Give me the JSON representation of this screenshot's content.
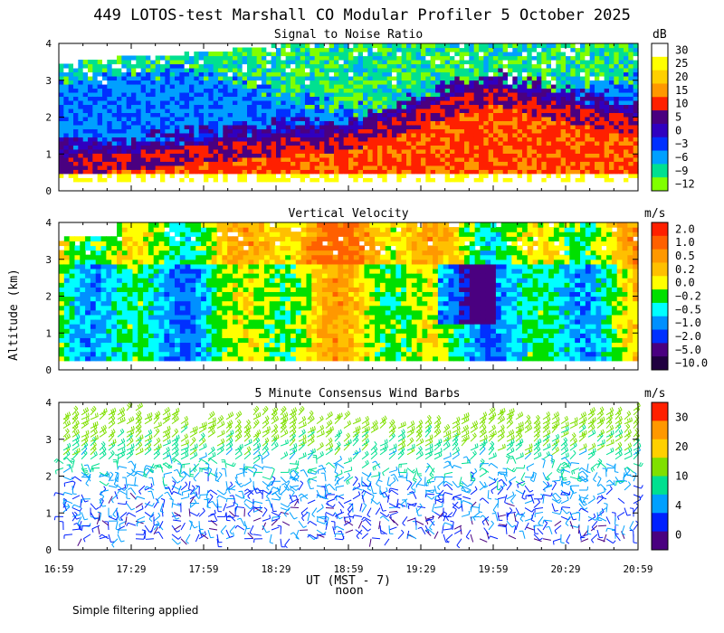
{
  "figure": {
    "title": "449 LOTOS-test Marshall CO Modular Profiler  5 October 2025",
    "ylabel": "Altitude (km)",
    "xlabel": "UT  (MST - 7)",
    "noon_label": "noon",
    "footnote": "Simple filtering applied",
    "x_ticks": [
      "16:59",
      "17:29",
      "17:59",
      "18:29",
      "18:59",
      "19:29",
      "19:59",
      "20:29",
      "20:59"
    ]
  },
  "chart_data": [
    {
      "type": "heatmap",
      "title": "Signal to Noise Ratio",
      "unit": "dB",
      "ylim": [
        0,
        4
      ],
      "y_ticks": [
        "0",
        "1",
        "2",
        "3",
        "4"
      ],
      "legend_labels": [
        "30",
        "25",
        "20",
        "15",
        "10",
        "5",
        "0",
        "−3",
        "−6",
        "−9",
        "−12"
      ],
      "colors": [
        "#ffffff",
        "#ffff00",
        "#ffd000",
        "#ff9800",
        "#ff2000",
        "#4a0080",
        "#3000c0",
        "#0030ff",
        "#00a0ff",
        "#00e090",
        "#80ff00"
      ],
      "legend_placement": "right",
      "features": {
        "top_km": [
          3.4,
          3.6,
          3.7,
          3.9,
          4.0,
          4.0,
          4.0,
          4.0,
          3.9
        ],
        "ground_echo_top_km": [
          0.9,
          1.0,
          1.2,
          1.4,
          1.5,
          2.2,
          2.8,
          2.3,
          2.0
        ],
        "blue_band_top_km": [
          2.8,
          3.2,
          3.2,
          2.6,
          2.2,
          2.0,
          2.2,
          2.6,
          3.0
        ]
      }
    },
    {
      "type": "heatmap",
      "title": "Vertical Velocity",
      "unit": "m/s",
      "ylim": [
        0,
        4
      ],
      "y_ticks": [
        "0",
        "1",
        "2",
        "3",
        "4"
      ],
      "legend_labels": [
        "2.0",
        "1.0",
        "0.5",
        "0.2",
        "0.0",
        "−0.2",
        "−0.5",
        "−1.0",
        "−2.0",
        "−5.0",
        "−10.0"
      ],
      "colors": [
        "#ff2000",
        "#ff6000",
        "#ff9800",
        "#ffc000",
        "#ffff00",
        "#00e000",
        "#00ffff",
        "#0090ff",
        "#0030ff",
        "#4a0080",
        "#200040"
      ],
      "legend_placement": "right"
    },
    {
      "type": "scatter",
      "title": "5 Minute Consensus Wind Barbs",
      "unit": "m/s",
      "ylim": [
        0,
        4
      ],
      "y_ticks": [
        "0",
        "1",
        "2",
        "3",
        "4"
      ],
      "legend_labels": [
        "30",
        "20",
        "10",
        "4",
        "0"
      ],
      "colors": [
        "#ff2000",
        "#ff9800",
        "#ffd000",
        "#80e000",
        "#00e090",
        "#00a0ff",
        "#0020ff",
        "#4a0080"
      ],
      "legend_placement": "right",
      "features": {
        "top_km": [
          3.7,
          3.8,
          3.6,
          3.7,
          3.6,
          3.4,
          3.7,
          3.6,
          3.8
        ],
        "speed_by_height_mps": [
          [
            0.5,
            3
          ],
          [
            1.5,
            4
          ],
          [
            2.5,
            8
          ],
          [
            3.0,
            11
          ],
          [
            3.6,
            13
          ]
        ]
      }
    }
  ]
}
